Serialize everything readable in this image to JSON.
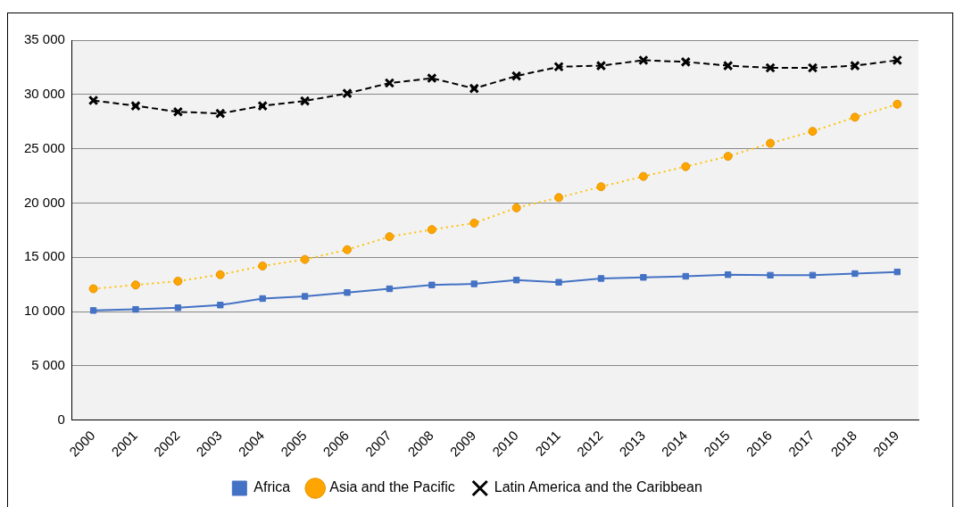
{
  "chart_data": {
    "type": "line",
    "categories": [
      "2000",
      "2001",
      "2002",
      "2003",
      "2004",
      "2005",
      "2006",
      "2007",
      "2008",
      "2009",
      "2010",
      "2011",
      "2012",
      "2013",
      "2014",
      "2015",
      "2016",
      "2017",
      "2018",
      "2019"
    ],
    "ylim": [
      0,
      35000
    ],
    "yticks": [
      {
        "value": 0,
        "label": "0"
      },
      {
        "value": 5000,
        "label": "5 000"
      },
      {
        "value": 10000,
        "label": "10 000"
      },
      {
        "value": 15000,
        "label": "15 000"
      },
      {
        "value": 20000,
        "label": "20 000"
      },
      {
        "value": 25000,
        "label": "25 000"
      },
      {
        "value": 30000,
        "label": "30 000"
      },
      {
        "value": 35000,
        "label": "35 000"
      }
    ],
    "grid": "y",
    "legend": "bottom",
    "series": [
      {
        "name": "Africa",
        "color": "#4472c4",
        "marker": "square",
        "line_style": "solid",
        "values": [
          10100,
          10200,
          10350,
          10600,
          11200,
          11400,
          11750,
          12100,
          12450,
          12550,
          12900,
          12700,
          13050,
          13150,
          13250,
          13400,
          13350,
          13350,
          13500,
          13650
        ]
      },
      {
        "name": "Asia and the Pacific",
        "color": "#ffc000",
        "marker": "circle",
        "line_style": "dotted",
        "values": [
          12100,
          12450,
          12800,
          13400,
          14200,
          14800,
          15700,
          16900,
          17550,
          18150,
          19550,
          20500,
          21500,
          22450,
          23350,
          24300,
          25500,
          26600,
          27900,
          29100
        ]
      },
      {
        "name": "Latin America and the Caribbean",
        "color": "#000000",
        "marker": "cross",
        "line_style": "dashed",
        "values": [
          29450,
          28950,
          28400,
          28250,
          28950,
          29400,
          30100,
          31050,
          31500,
          30550,
          31700,
          32550,
          32650,
          33150,
          33000,
          32650,
          32450,
          32450,
          32650,
          33150
        ]
      }
    ]
  }
}
